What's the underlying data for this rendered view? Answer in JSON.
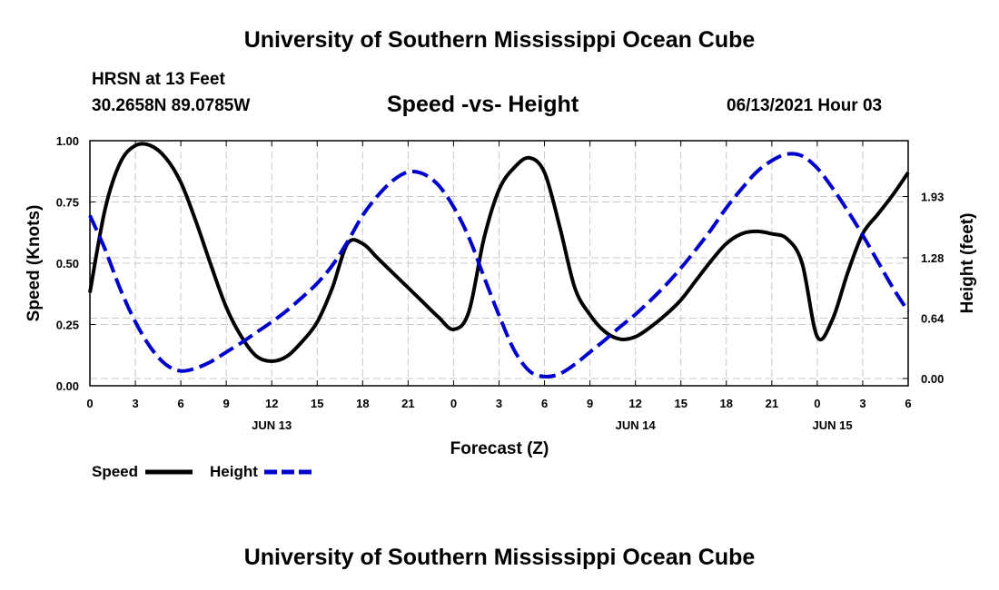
{
  "header": {
    "title": "University of Southern Mississippi Ocean Cube",
    "station": "HRSN at 13 Feet",
    "coordinates": "30.2658N  89.0785W",
    "chart_title": "Speed -vs- Height",
    "datetime": "06/13/2021 Hour 03"
  },
  "footer": {
    "title": "University of Southern Mississippi Ocean Cube"
  },
  "colors": {
    "speed": "#000000",
    "height": "#0000cc",
    "grid": "#c8c8c8"
  },
  "chart_data": {
    "type": "line",
    "title": "Speed -vs- Height",
    "xlabel": "Forecast (Z)",
    "ylabel": "Speed (Knots)",
    "y2label": "Height (feet)",
    "x_unit": "hours from 0Z Jun 13",
    "xlim": [
      0,
      54
    ],
    "ylim": [
      0,
      1
    ],
    "y2lim": [
      0,
      2.57
    ],
    "grid": true,
    "legend_position": "bottom-left",
    "x_ticks": [
      {
        "x": 0,
        "label": "0"
      },
      {
        "x": 3,
        "label": "3"
      },
      {
        "x": 6,
        "label": "6"
      },
      {
        "x": 9,
        "label": "9"
      },
      {
        "x": 12,
        "label": "12"
      },
      {
        "x": 15,
        "label": "15"
      },
      {
        "x": 18,
        "label": "18"
      },
      {
        "x": 21,
        "label": "21"
      },
      {
        "x": 24,
        "label": "0"
      },
      {
        "x": 27,
        "label": "3"
      },
      {
        "x": 30,
        "label": "6"
      },
      {
        "x": 33,
        "label": "9"
      },
      {
        "x": 36,
        "label": "12"
      },
      {
        "x": 39,
        "label": "15"
      },
      {
        "x": 42,
        "label": "18"
      },
      {
        "x": 45,
        "label": "21"
      },
      {
        "x": 48,
        "label": "0"
      },
      {
        "x": 51,
        "label": "3"
      },
      {
        "x": 54,
        "label": "6"
      }
    ],
    "date_labels": [
      {
        "x": 12,
        "label": "JUN 13"
      },
      {
        "x": 36,
        "label": "JUN 14"
      },
      {
        "x": 49,
        "label": "JUN 15"
      }
    ],
    "y_ticks": [
      {
        "v": 0.0,
        "label": "0.00"
      },
      {
        "v": 0.25,
        "label": "0.25"
      },
      {
        "v": 0.5,
        "label": "0.50"
      },
      {
        "v": 0.75,
        "label": "0.75"
      },
      {
        "v": 1.0,
        "label": "1.00"
      }
    ],
    "y2_ticks": [
      {
        "v": 0.0,
        "label": "0.00"
      },
      {
        "v": 0.64,
        "label": "0.64"
      },
      {
        "v": 1.28,
        "label": "1.28"
      },
      {
        "v": 1.93,
        "label": "1.93"
      }
    ],
    "series": [
      {
        "name": "Speed",
        "axis": "left",
        "style": "solid",
        "x": [
          0,
          1,
          2,
          3,
          4,
          5,
          6,
          7,
          8,
          9,
          10,
          11,
          12,
          13,
          14,
          15,
          16,
          17,
          18,
          19,
          20,
          21,
          22,
          23,
          24,
          25,
          26,
          27,
          28,
          29,
          30,
          31,
          32,
          33,
          34,
          35,
          36,
          37,
          38,
          39,
          40,
          41,
          42,
          43,
          44,
          45,
          46,
          47,
          48,
          49,
          50,
          51,
          52,
          53,
          54
        ],
        "values": [
          0.38,
          0.72,
          0.91,
          0.98,
          0.98,
          0.93,
          0.83,
          0.67,
          0.49,
          0.32,
          0.2,
          0.12,
          0.1,
          0.12,
          0.18,
          0.26,
          0.4,
          0.58,
          0.58,
          0.52,
          0.46,
          0.4,
          0.34,
          0.28,
          0.23,
          0.3,
          0.6,
          0.8,
          0.89,
          0.93,
          0.87,
          0.65,
          0.4,
          0.29,
          0.22,
          0.19,
          0.2,
          0.24,
          0.29,
          0.35,
          0.43,
          0.51,
          0.58,
          0.62,
          0.63,
          0.62,
          0.6,
          0.5,
          0.2,
          0.27,
          0.46,
          0.62,
          0.7,
          0.78,
          0.87
        ]
      },
      {
        "name": "Height",
        "axis": "right",
        "style": "dashed",
        "x": [
          0,
          1,
          2,
          3,
          4,
          5,
          6,
          7,
          8,
          9,
          10,
          11,
          12,
          13,
          14,
          15,
          16,
          17,
          18,
          19,
          20,
          21,
          22,
          23,
          24,
          25,
          26,
          27,
          28,
          29,
          30,
          31,
          32,
          33,
          34,
          35,
          36,
          37,
          38,
          39,
          40,
          41,
          42,
          43,
          44,
          45,
          46,
          47,
          48,
          49,
          50,
          51,
          52,
          53,
          54
        ],
        "values": [
          1.73,
          1.37,
          0.95,
          0.6,
          0.33,
          0.15,
          0.08,
          0.11,
          0.18,
          0.28,
          0.38,
          0.49,
          0.6,
          0.72,
          0.86,
          1.01,
          1.2,
          1.45,
          1.73,
          1.94,
          2.1,
          2.19,
          2.17,
          2.05,
          1.82,
          1.5,
          1.08,
          0.67,
          0.3,
          0.08,
          0.02,
          0.05,
          0.15,
          0.28,
          0.41,
          0.55,
          0.68,
          0.83,
          0.99,
          1.17,
          1.37,
          1.58,
          1.81,
          2.01,
          2.19,
          2.31,
          2.38,
          2.36,
          2.23,
          2.02,
          1.78,
          1.52,
          1.24,
          0.96,
          0.71
        ]
      }
    ]
  }
}
